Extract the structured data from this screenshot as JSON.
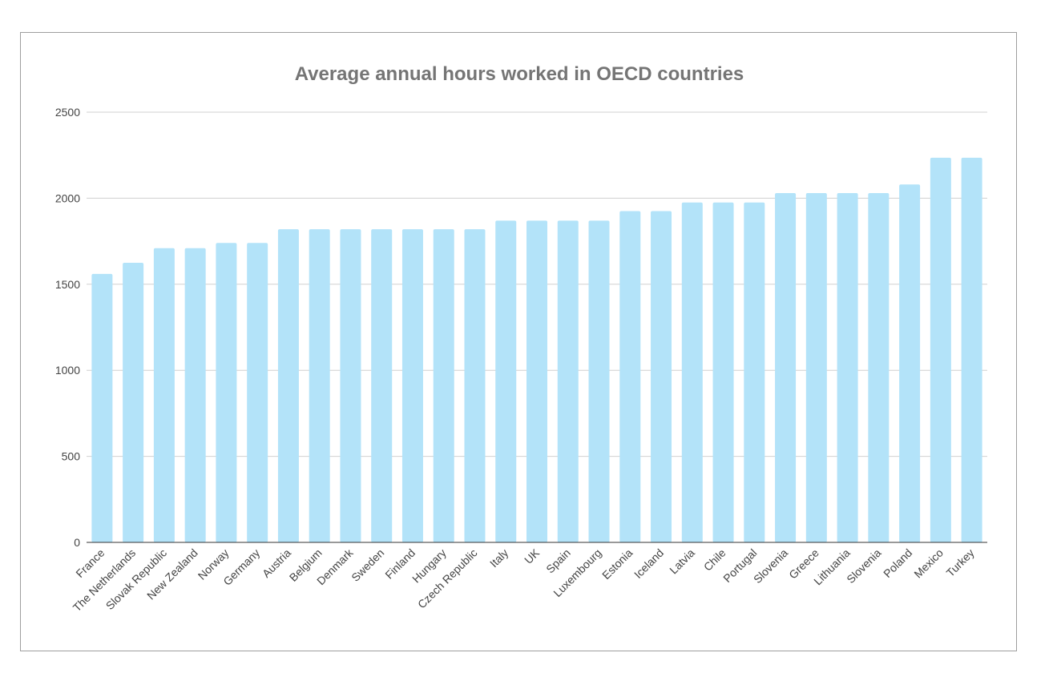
{
  "chart_data": {
    "type": "bar",
    "title": "Average annual hours worked in OECD countries",
    "xlabel": "",
    "ylabel": "",
    "ylim": [
      0,
      2500
    ],
    "yticks": [
      0,
      500,
      1000,
      1500,
      2000,
      2500
    ],
    "grid": true,
    "bar_color": "#b3e3f9",
    "categories": [
      "France",
      "The Netherlands",
      "Slovak Republic",
      "New Zealand",
      "Norway",
      "Germany",
      "Austria",
      "Belgium",
      "Denmark",
      "Sweden",
      "Finland",
      "Hungary",
      "Czech Republic",
      "Italy",
      "UK",
      "Spain",
      "Luxembourg",
      "Estonia",
      "Iceland",
      "Latvia",
      "Chile",
      "Portugal",
      "Slovenia",
      "Greece",
      "Lithuania",
      "Slovenia",
      "Poland",
      "Mexico",
      "Turkey"
    ],
    "values": [
      1560,
      1625,
      1710,
      1710,
      1740,
      1740,
      1820,
      1820,
      1820,
      1820,
      1820,
      1820,
      1820,
      1870,
      1870,
      1870,
      1870,
      1925,
      1925,
      1975,
      1975,
      1975,
      2030,
      2030,
      2030,
      2030,
      2080,
      2235,
      2235
    ]
  }
}
